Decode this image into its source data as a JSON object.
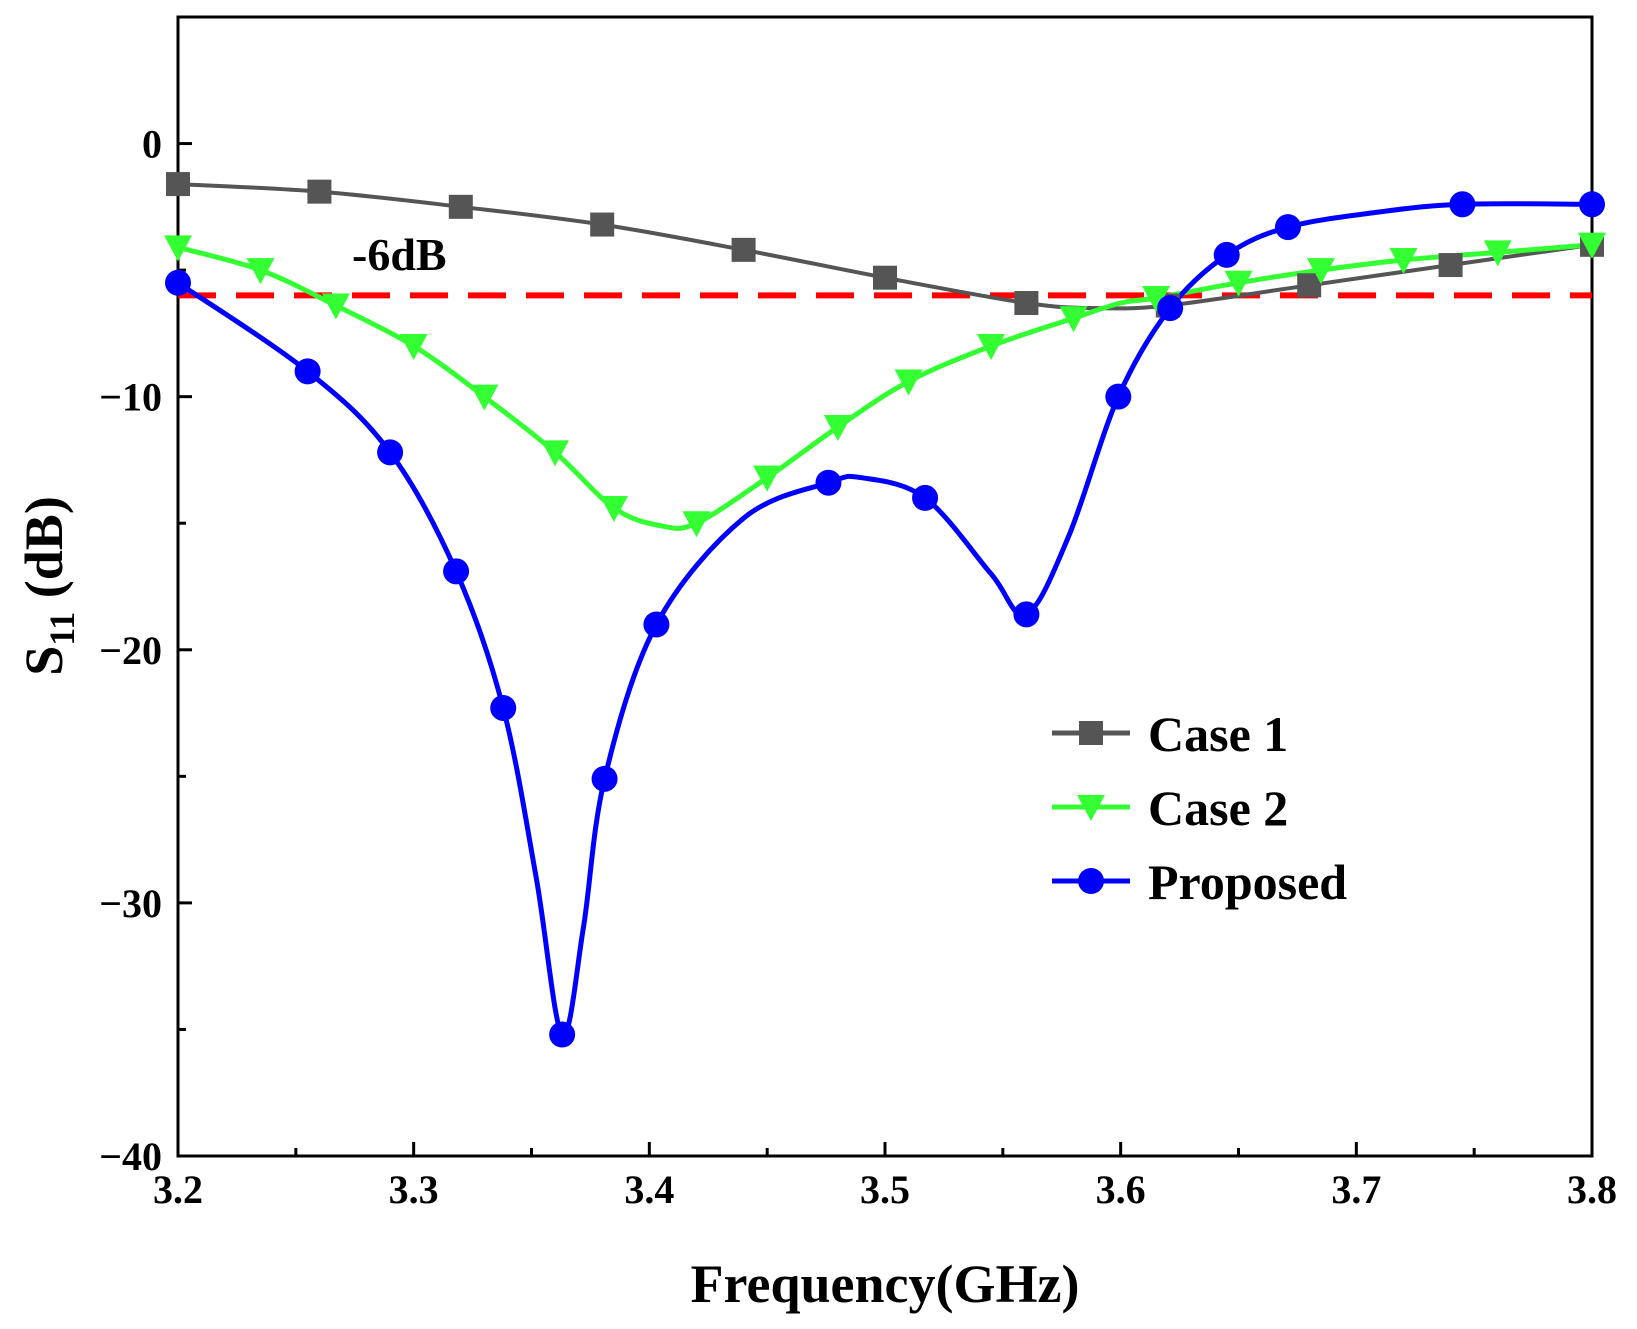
{
  "chart_data": {
    "type": "line",
    "xlabel": "Frequency(GHz)",
    "ylabel_main": "S",
    "ylabel_sub": "11",
    "ylabel_unit": " (dB)",
    "xlim": [
      3.2,
      3.8
    ],
    "ylim": [
      -40,
      5
    ],
    "xticks": [
      3.2,
      3.3,
      3.4,
      3.5,
      3.6,
      3.7,
      3.8
    ],
    "xtick_labels": [
      "3.2",
      "3.3",
      "3.4",
      "3.5",
      "3.6",
      "3.7",
      "3.8"
    ],
    "yticks": [
      0,
      -10,
      -20,
      -30,
      -40
    ],
    "ytick_labels": [
      "0",
      "−10",
      "−20",
      "−30",
      "−40"
    ],
    "grid": false,
    "legend_position": "middle-right",
    "reference_line": {
      "y": -6,
      "color": "#ff0000",
      "style": "dashed",
      "label": "-6dB"
    },
    "series": [
      {
        "name": "Case 1",
        "color": "#555555",
        "marker": "square",
        "curve": [
          [
            3.2,
            -1.6
          ],
          [
            3.26,
            -1.9
          ],
          [
            3.32,
            -2.5
          ],
          [
            3.38,
            -3.2
          ],
          [
            3.44,
            -4.2
          ],
          [
            3.5,
            -5.3
          ],
          [
            3.56,
            -6.3
          ],
          [
            3.59,
            -6.5
          ],
          [
            3.62,
            -6.4
          ],
          [
            3.68,
            -5.6
          ],
          [
            3.74,
            -4.8
          ],
          [
            3.8,
            -4.0
          ]
        ],
        "markers": [
          [
            3.2,
            -1.6
          ],
          [
            3.26,
            -1.9
          ],
          [
            3.32,
            -2.5
          ],
          [
            3.38,
            -3.2
          ],
          [
            3.44,
            -4.2
          ],
          [
            3.5,
            -5.3
          ],
          [
            3.56,
            -6.3
          ],
          [
            3.62,
            -6.4
          ],
          [
            3.68,
            -5.6
          ],
          [
            3.74,
            -4.8
          ],
          [
            3.8,
            -4.0
          ]
        ]
      },
      {
        "name": "Case 2",
        "color": "#33ff33",
        "marker": "triangle-down",
        "curve": [
          [
            3.2,
            -4.1
          ],
          [
            3.235,
            -5.0
          ],
          [
            3.267,
            -6.4
          ],
          [
            3.3,
            -8.0
          ],
          [
            3.33,
            -10.0
          ],
          [
            3.36,
            -12.2
          ],
          [
            3.385,
            -14.4
          ],
          [
            3.405,
            -15.1
          ],
          [
            3.42,
            -15.0
          ],
          [
            3.45,
            -13.2
          ],
          [
            3.48,
            -11.2
          ],
          [
            3.51,
            -9.4
          ],
          [
            3.545,
            -8.0
          ],
          [
            3.58,
            -6.9
          ],
          [
            3.6,
            -6.3
          ],
          [
            3.615,
            -6.1
          ],
          [
            3.65,
            -5.5
          ],
          [
            3.685,
            -5.0
          ],
          [
            3.72,
            -4.6
          ],
          [
            3.76,
            -4.3
          ],
          [
            3.8,
            -4.0
          ]
        ],
        "markers": [
          [
            3.2,
            -4.1
          ],
          [
            3.235,
            -5.0
          ],
          [
            3.267,
            -6.4
          ],
          [
            3.3,
            -8.0
          ],
          [
            3.33,
            -10.0
          ],
          [
            3.36,
            -12.2
          ],
          [
            3.385,
            -14.4
          ],
          [
            3.42,
            -15.0
          ],
          [
            3.45,
            -13.2
          ],
          [
            3.48,
            -11.2
          ],
          [
            3.51,
            -9.4
          ],
          [
            3.545,
            -8.0
          ],
          [
            3.58,
            -6.9
          ],
          [
            3.615,
            -6.1
          ],
          [
            3.65,
            -5.5
          ],
          [
            3.685,
            -5.0
          ],
          [
            3.72,
            -4.6
          ],
          [
            3.76,
            -4.3
          ],
          [
            3.8,
            -4.0
          ]
        ]
      },
      {
        "name": "Proposed",
        "color": "#0000ff",
        "marker": "circle",
        "curve": [
          [
            3.2,
            -5.5
          ],
          [
            3.255,
            -9.0
          ],
          [
            3.29,
            -12.2
          ],
          [
            3.318,
            -16.9
          ],
          [
            3.338,
            -22.3
          ],
          [
            3.352,
            -29.0
          ],
          [
            3.363,
            -35.2
          ],
          [
            3.372,
            -31.0
          ],
          [
            3.381,
            -25.1
          ],
          [
            3.403,
            -19.0
          ],
          [
            3.44,
            -14.8
          ],
          [
            3.476,
            -13.4
          ],
          [
            3.49,
            -13.2
          ],
          [
            3.517,
            -14.0
          ],
          [
            3.545,
            -17.0
          ],
          [
            3.56,
            -18.6
          ],
          [
            3.578,
            -15.5
          ],
          [
            3.599,
            -10.0
          ],
          [
            3.621,
            -6.5
          ],
          [
            3.645,
            -4.4
          ],
          [
            3.671,
            -3.3
          ],
          [
            3.71,
            -2.7
          ],
          [
            3.745,
            -2.4
          ],
          [
            3.8,
            -2.4
          ]
        ],
        "markers": [
          [
            3.2,
            -5.5
          ],
          [
            3.255,
            -9.0
          ],
          [
            3.29,
            -12.2
          ],
          [
            3.318,
            -16.9
          ],
          [
            3.338,
            -22.3
          ],
          [
            3.363,
            -35.2
          ],
          [
            3.381,
            -25.1
          ],
          [
            3.403,
            -19.0
          ],
          [
            3.476,
            -13.4
          ],
          [
            3.517,
            -14.0
          ],
          [
            3.56,
            -18.6
          ],
          [
            3.599,
            -10.0
          ],
          [
            3.621,
            -6.5
          ],
          [
            3.645,
            -4.4
          ],
          [
            3.671,
            -3.3
          ],
          [
            3.745,
            -2.4
          ],
          [
            3.8,
            -2.4
          ]
        ]
      }
    ]
  }
}
